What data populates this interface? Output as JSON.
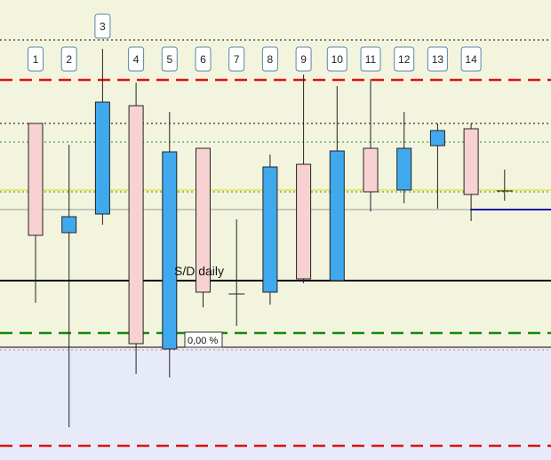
{
  "chart_data": {
    "type": "candlestick",
    "title": "",
    "xlabel": "",
    "ylabel": "",
    "candle_labels": [
      "1",
      "2",
      "3",
      "4",
      "5",
      "6",
      "7",
      "8",
      "9",
      "10",
      "11",
      "12",
      "13",
      "14"
    ],
    "candles": [
      {
        "label": "1",
        "open": -139,
        "high": -139,
        "low": -341,
        "close": -265,
        "color": "pink"
      },
      {
        "label": "2",
        "open": -262,
        "high": -163,
        "low": -481,
        "close": -244,
        "color": "blue"
      },
      {
        "label": "3",
        "open": -241,
        "high": -55,
        "low": -253,
        "close": -115,
        "color": "blue"
      },
      {
        "label": "4",
        "open": -119,
        "high": -93,
        "low": -421,
        "close": -387,
        "color": "pink"
      },
      {
        "label": "5",
        "open": -393,
        "high": -126,
        "low": -425,
        "close": -171,
        "color": "blue"
      },
      {
        "label": "6",
        "open": -167,
        "high": -167,
        "low": -346,
        "close": -329,
        "color": "pink"
      },
      {
        "label": "7",
        "open": -331,
        "high": -247,
        "low": -367,
        "close": -331,
        "color": "doji"
      },
      {
        "label": "8",
        "open": -329,
        "high": -174,
        "low": -343,
        "close": -188,
        "color": "blue"
      },
      {
        "label": "9",
        "open": -185,
        "high": -84,
        "low": -319,
        "close": -314,
        "color": "pink"
      },
      {
        "label": "10",
        "open": -316,
        "high": -97,
        "low": -316,
        "close": -170,
        "color": "blue"
      },
      {
        "label": "11",
        "open": -167,
        "high": -89,
        "low": -238,
        "close": -216,
        "color": "pink"
      },
      {
        "label": "12",
        "open": -214,
        "high": -126,
        "low": -229,
        "close": -167,
        "color": "blue"
      },
      {
        "label": "13",
        "open": -164,
        "high": -139,
        "low": -235,
        "close": -147,
        "color": "blue"
      },
      {
        "label": "14",
        "open": -145,
        "high": -139,
        "low": -249,
        "close": -219,
        "color": "pink"
      },
      {
        "label": "",
        "open": -215,
        "high": -191,
        "low": -226,
        "close": -215,
        "color": "doji"
      }
    ],
    "levels": [
      {
        "name": "black-dotted-top",
        "y": -45,
        "color": "#000000",
        "style": "dotted"
      },
      {
        "name": "red-dashed-top",
        "y": -90,
        "color": "#dd1111",
        "style": "dashed"
      },
      {
        "name": "black-dotted-mid",
        "y": -139,
        "color": "#000000",
        "style": "dotted"
      },
      {
        "name": "green-dotted",
        "y": -160,
        "color": "#228b22",
        "style": "dotted"
      },
      {
        "name": "yellow-line",
        "y": -214,
        "color": "#e6d800",
        "style": "solid"
      },
      {
        "name": "green-dotted-low",
        "y": -216,
        "color": "#228b22",
        "style": "dotted"
      },
      {
        "name": "gray-line",
        "y": -236,
        "color": "#9a9a9a",
        "style": "solid"
      },
      {
        "name": "sd-daily",
        "y": -316,
        "color": "#000000",
        "style": "solid"
      },
      {
        "name": "green-dashed",
        "y": -375,
        "color": "#0e8a0e",
        "style": "dashed"
      },
      {
        "name": "black-thin",
        "y": -391,
        "color": "#000000",
        "style": "solid"
      },
      {
        "name": "pink-dotted",
        "y": -394,
        "color": "#e87878",
        "style": "dotted"
      },
      {
        "name": "red-dashed-bottom",
        "y": -502,
        "color": "#dd1111",
        "style": "dashed"
      }
    ],
    "blue_segment": {
      "y": -236,
      "from_candle": "14",
      "color": "#1a1aa8"
    },
    "zone_below": {
      "from_y": -391,
      "color": "#e7ebf9"
    },
    "annotations": {
      "sd_label": "S/D daily",
      "percent_label": "0,00 %"
    },
    "ylim": [
      -518,
      0
    ],
    "colors": {
      "bull": "#40a9ee",
      "bear": "#f8d2d2",
      "background": "#f3f4de"
    }
  }
}
